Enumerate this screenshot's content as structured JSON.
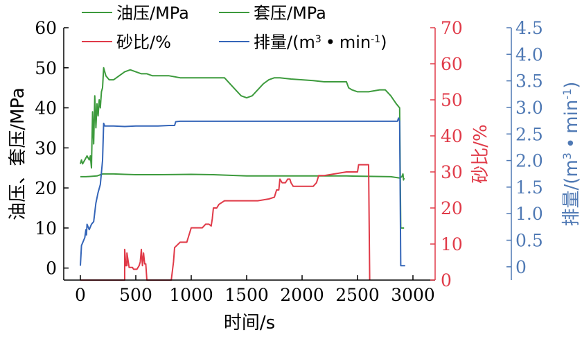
{
  "chart_data": {
    "type": "line",
    "title": "",
    "xlabel": "时间/s",
    "ylabel_left": "油压、套压/MPa",
    "ylabel_right_1": "砂比/%",
    "ylabel_right_2": "排量/(m³·min⁻¹)",
    "xlim": [
      -150,
      3200
    ],
    "ylim_left": [
      -3,
      60
    ],
    "ylim_right_1": [
      0,
      70
    ],
    "ylim_right_2": [
      -0.25,
      4.5
    ],
    "x_ticks": [
      0,
      500,
      1000,
      1500,
      2000,
      2500,
      3000
    ],
    "y_ticks_left": [
      0,
      10,
      20,
      30,
      40,
      50,
      60
    ],
    "y_ticks_right_1": [
      0,
      10,
      20,
      30,
      40,
      50,
      60,
      70
    ],
    "y_ticks_right_2": [
      "0",
      "0.5",
      "1.0",
      "1.5",
      "2.0",
      "2.5",
      "3.0",
      "3.5",
      "4.0",
      "4.5"
    ],
    "grid": false,
    "legend_position": "top",
    "legend": {
      "tubing": "油压/MPa",
      "casing": "套压/MPa",
      "sand": "砂比/%",
      "rate": "排量/(m",
      "rate_sup": "3",
      "rate_dot": "•",
      "rate_min": "min",
      "rate_sup2": "-1",
      "rate_end": ")"
    },
    "colors": {
      "tubing": "#3c9a3c",
      "casing": "#3c9a3c",
      "sand": "#e03a48",
      "rate": "#3465b8",
      "axis_left": "#000000",
      "axis_right_1": "#e03a48",
      "axis_right_2": "#4f79b4"
    },
    "series": [
      {
        "name": "油压/MPa",
        "axis": "left",
        "color": "#3c9a3c",
        "points": [
          [
            0,
            26
          ],
          [
            10,
            27
          ],
          [
            20,
            26
          ],
          [
            40,
            27
          ],
          [
            60,
            28
          ],
          [
            80,
            27
          ],
          [
            90,
            28
          ],
          [
            100,
            25
          ],
          [
            110,
            39
          ],
          [
            120,
            31
          ],
          [
            130,
            43
          ],
          [
            140,
            35
          ],
          [
            150,
            41
          ],
          [
            160,
            38
          ],
          [
            170,
            42
          ],
          [
            180,
            40
          ],
          [
            190,
            44
          ],
          [
            200,
            45
          ],
          [
            210,
            50
          ],
          [
            230,
            48
          ],
          [
            260,
            47
          ],
          [
            300,
            47
          ],
          [
            350,
            48
          ],
          [
            400,
            49
          ],
          [
            450,
            49.5
          ],
          [
            500,
            49
          ],
          [
            550,
            48.5
          ],
          [
            600,
            48.5
          ],
          [
            650,
            48
          ],
          [
            700,
            48
          ],
          [
            800,
            48
          ],
          [
            900,
            47.5
          ],
          [
            1000,
            47.5
          ],
          [
            1100,
            47.5
          ],
          [
            1200,
            47.5
          ],
          [
            1300,
            47.5
          ],
          [
            1350,
            46
          ],
          [
            1400,
            44.5
          ],
          [
            1450,
            43
          ],
          [
            1500,
            42.5
          ],
          [
            1550,
            43
          ],
          [
            1600,
            44.5
          ],
          [
            1650,
            46
          ],
          [
            1700,
            47
          ],
          [
            1750,
            47.5
          ],
          [
            1800,
            47.5
          ],
          [
            1900,
            47.2
          ],
          [
            2000,
            47
          ],
          [
            2100,
            46.8
          ],
          [
            2200,
            46.5
          ],
          [
            2300,
            46.5
          ],
          [
            2400,
            46.5
          ],
          [
            2420,
            45
          ],
          [
            2450,
            44.5
          ],
          [
            2500,
            44
          ],
          [
            2600,
            44
          ],
          [
            2700,
            44.5
          ],
          [
            2750,
            44.5
          ],
          [
            2800,
            43
          ],
          [
            2850,
            41
          ],
          [
            2880,
            40
          ],
          [
            2890,
            10
          ],
          [
            2920,
            10
          ]
        ]
      },
      {
        "name": "套压/MPa",
        "axis": "left",
        "color": "#3c9a3c",
        "points": [
          [
            0,
            22.8
          ],
          [
            50,
            22.8
          ],
          [
            100,
            22.9
          ],
          [
            150,
            23
          ],
          [
            200,
            23.5
          ],
          [
            300,
            23.5
          ],
          [
            400,
            23.4
          ],
          [
            500,
            23.3
          ],
          [
            700,
            23.3
          ],
          [
            1000,
            23.4
          ],
          [
            1200,
            23.3
          ],
          [
            1500,
            23
          ],
          [
            1800,
            23
          ],
          [
            2000,
            23
          ],
          [
            2200,
            23
          ],
          [
            2400,
            23
          ],
          [
            2600,
            22.9
          ],
          [
            2800,
            22.8
          ],
          [
            2880,
            22.5
          ],
          [
            2900,
            22.8
          ],
          [
            2910,
            23.5
          ],
          [
            2915,
            22
          ],
          [
            2920,
            22.5
          ]
        ]
      },
      {
        "name": "砂比/%",
        "axis": "right_1",
        "color": "#e03a48",
        "points": [
          [
            0,
            0
          ],
          [
            400,
            0
          ],
          [
            400,
            8.5
          ],
          [
            410,
            4
          ],
          [
            420,
            4
          ],
          [
            420,
            7.5
          ],
          [
            440,
            3.5
          ],
          [
            470,
            3.5
          ],
          [
            480,
            3
          ],
          [
            510,
            3
          ],
          [
            520,
            3.5
          ],
          [
            530,
            4
          ],
          [
            540,
            5
          ],
          [
            550,
            8.5
          ],
          [
            560,
            4
          ],
          [
            570,
            7.5
          ],
          [
            580,
            4.5
          ],
          [
            590,
            4.5
          ],
          [
            600,
            0
          ],
          [
            820,
            0
          ],
          [
            840,
            5
          ],
          [
            850,
            9
          ],
          [
            900,
            10.5
          ],
          [
            960,
            10.5
          ],
          [
            980,
            12.5
          ],
          [
            1000,
            14.5
          ],
          [
            1050,
            14.5
          ],
          [
            1100,
            14.5
          ],
          [
            1130,
            15.5
          ],
          [
            1160,
            15.5
          ],
          [
            1180,
            15
          ],
          [
            1190,
            17
          ],
          [
            1200,
            20
          ],
          [
            1230,
            20
          ],
          [
            1250,
            21
          ],
          [
            1300,
            22
          ],
          [
            1400,
            22
          ],
          [
            1500,
            22
          ],
          [
            1600,
            22
          ],
          [
            1700,
            22.5
          ],
          [
            1750,
            23
          ],
          [
            1770,
            25
          ],
          [
            1790,
            25
          ],
          [
            1800,
            28
          ],
          [
            1820,
            27
          ],
          [
            1830,
            27
          ],
          [
            1840,
            27
          ],
          [
            1850,
            27
          ],
          [
            1870,
            28
          ],
          [
            1890,
            28
          ],
          [
            1900,
            27
          ],
          [
            1920,
            26
          ],
          [
            2000,
            26
          ],
          [
            2050,
            26
          ],
          [
            2100,
            26
          ],
          [
            2130,
            27
          ],
          [
            2150,
            29
          ],
          [
            2200,
            29
          ],
          [
            2300,
            29.5
          ],
          [
            2400,
            30
          ],
          [
            2500,
            30
          ],
          [
            2510,
            32
          ],
          [
            2550,
            32
          ],
          [
            2600,
            32
          ],
          [
            2610,
            0
          ]
        ]
      },
      {
        "name": "排量/(m³·min⁻¹)",
        "axis": "right_2",
        "color": "#3465b8",
        "points": [
          [
            0,
            0.02
          ],
          [
            10,
            0.4
          ],
          [
            20,
            0.45
          ],
          [
            40,
            0.55
          ],
          [
            50,
            0.7
          ],
          [
            55,
            0.6
          ],
          [
            60,
            0.8
          ],
          [
            70,
            0.75
          ],
          [
            80,
            0.7
          ],
          [
            100,
            0.8
          ],
          [
            120,
            0.85
          ],
          [
            140,
            1.2
          ],
          [
            160,
            1.4
          ],
          [
            180,
            1.55
          ],
          [
            200,
            2.0
          ],
          [
            210,
            2.7
          ],
          [
            220,
            2.65
          ],
          [
            300,
            2.65
          ],
          [
            400,
            2.64
          ],
          [
            500,
            2.65
          ],
          [
            600,
            2.65
          ],
          [
            700,
            2.65
          ],
          [
            800,
            2.66
          ],
          [
            850,
            2.66
          ],
          [
            860,
            2.73
          ],
          [
            900,
            2.74
          ],
          [
            1000,
            2.74
          ],
          [
            1200,
            2.74
          ],
          [
            1400,
            2.74
          ],
          [
            1600,
            2.74
          ],
          [
            1800,
            2.74
          ],
          [
            2000,
            2.74
          ],
          [
            2200,
            2.74
          ],
          [
            2400,
            2.74
          ],
          [
            2600,
            2.74
          ],
          [
            2800,
            2.74
          ],
          [
            2860,
            2.74
          ],
          [
            2870,
            2.8
          ],
          [
            2880,
            2.74
          ],
          [
            2890,
            0.02
          ],
          [
            2930,
            0.02
          ]
        ]
      }
    ]
  }
}
